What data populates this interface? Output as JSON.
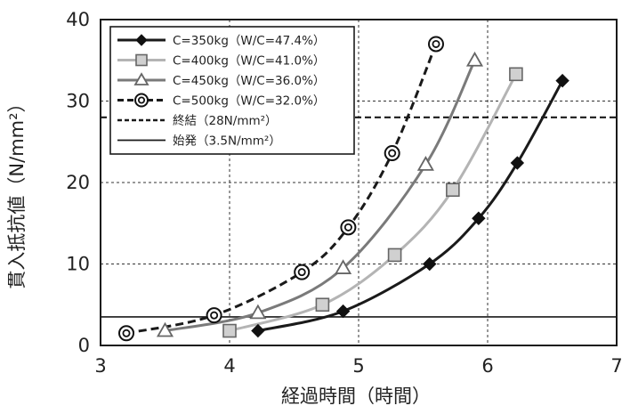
{
  "chart_data": {
    "type": "line",
    "xlabel": "経過時間（時間）",
    "ylabel": "貫入抵抗値（N/mm²）",
    "xlim": [
      3,
      7
    ],
    "ylim": [
      0,
      40
    ],
    "xticks": [
      "3",
      "4",
      "5",
      "6",
      "7"
    ],
    "yticks": [
      "0",
      "10",
      "20",
      "30",
      "40"
    ],
    "grid": "dashed",
    "legend_position": "top-left",
    "series": [
      {
        "name": "C=350kg（W/C=47.4%）",
        "marker": "diamond",
        "dash": "solid",
        "color": "#1a1a1a",
        "x": [
          4.22,
          4.88,
          5.55,
          5.93,
          6.23,
          6.58
        ],
        "y": [
          1.8,
          4.2,
          10.0,
          15.6,
          22.4,
          32.5
        ]
      },
      {
        "name": "C=400kg（W/C=41.0%）",
        "marker": "square",
        "dash": "solid",
        "color": "#b4b4b4",
        "x": [
          4.0,
          4.72,
          5.28,
          5.73,
          6.22
        ],
        "y": [
          1.8,
          5.0,
          11.1,
          19.1,
          33.3
        ]
      },
      {
        "name": "C=450kg（W/C=36.0%）",
        "marker": "triangle",
        "dash": "solid",
        "color": "#7a7a7a",
        "x": [
          3.5,
          4.22,
          4.88,
          5.52,
          5.9
        ],
        "y": [
          1.8,
          4.0,
          9.5,
          22.2,
          35.0
        ]
      },
      {
        "name": "C=500kg（W/C=32.0%）",
        "marker": "double-circle",
        "dash": "dashed",
        "color": "#1a1a1a",
        "x": [
          3.2,
          3.88,
          4.56,
          4.92,
          5.26,
          5.6
        ],
        "y": [
          1.5,
          3.7,
          9.0,
          14.5,
          23.6,
          37.0
        ]
      }
    ],
    "reference_lines": [
      {
        "name": "終結（28N/mm²）",
        "y": 28,
        "dash": "dashed"
      },
      {
        "name": "始発（3.5N/mm²）",
        "y": 3.5,
        "dash": "solid"
      }
    ]
  }
}
